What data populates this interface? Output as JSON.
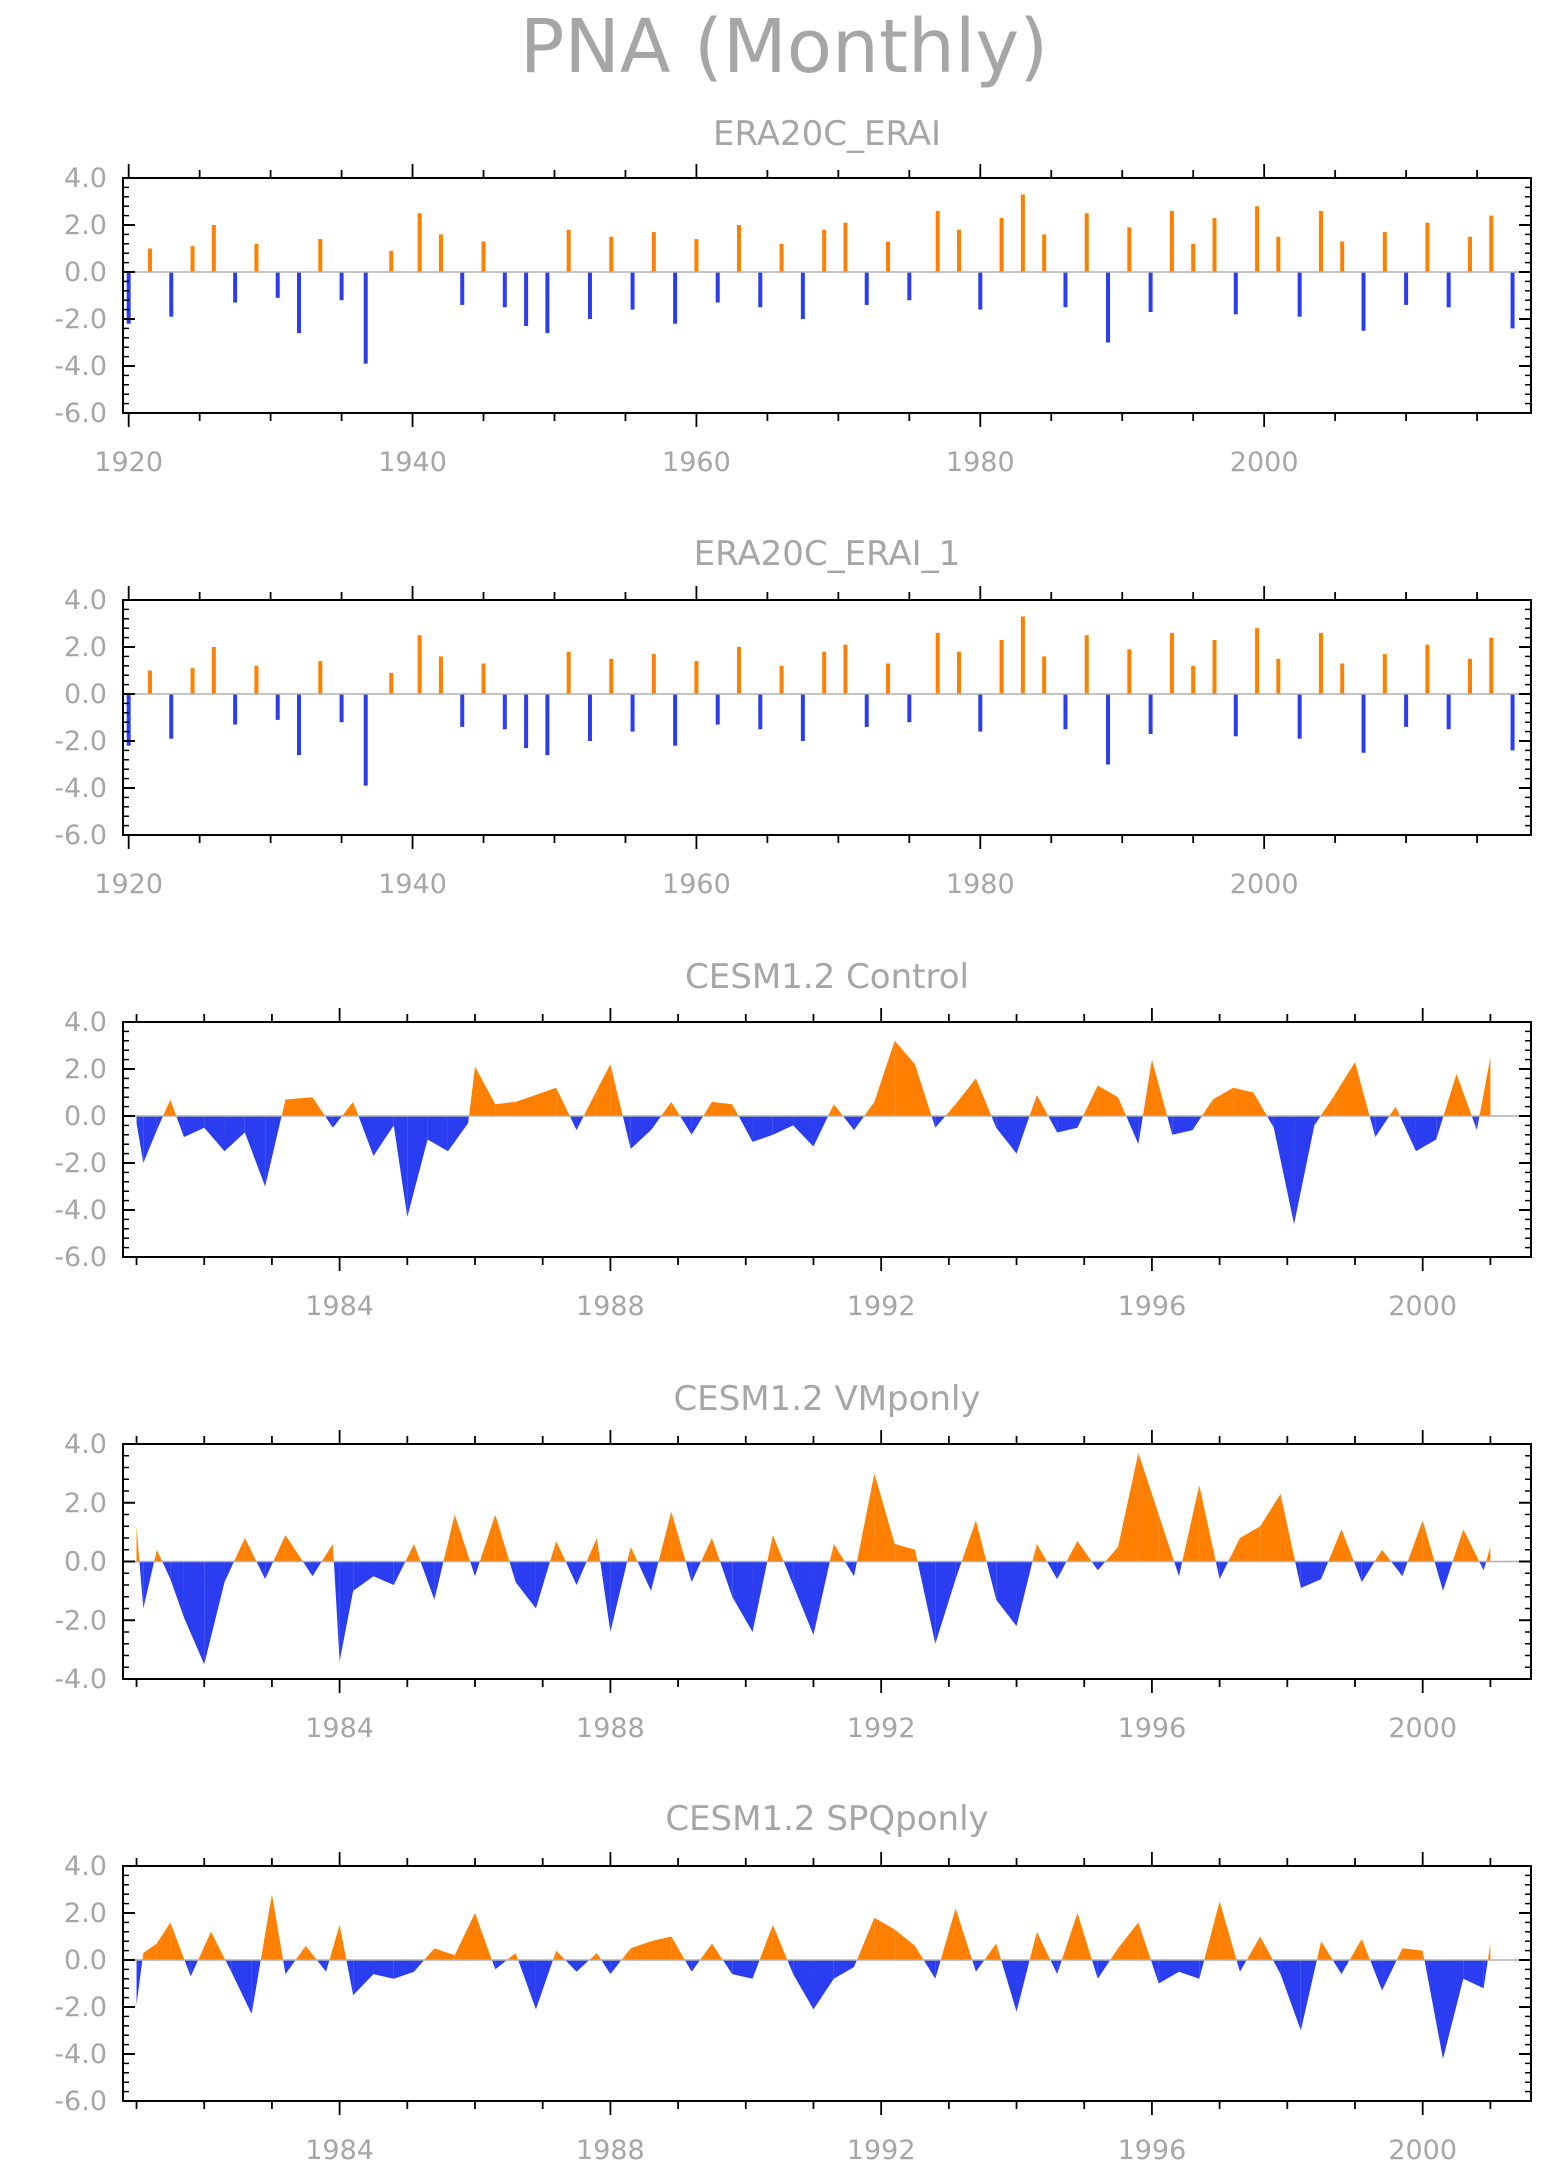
{
  "title": "PNA (Monthly)",
  "colors": {
    "positive": "#ff8000",
    "negative": "#2a3df0",
    "text": "#a6a6a6",
    "axis": "#000000"
  },
  "chart_data": [
    {
      "type": "area",
      "title": "ERA20C_ERAI",
      "xlabel": "",
      "ylabel": "",
      "xlim": [
        1919.6,
        2018.8
      ],
      "ylim": [
        -6.0,
        4.0
      ],
      "y_ticks": [
        "4.0",
        "2.0",
        "0.0",
        "-2.0",
        "-4.0",
        "-6.0"
      ],
      "x_ticks": [
        1920,
        1940,
        1960,
        1980,
        2000
      ],
      "x_tick_labels": [
        "1920",
        "1940",
        "1960",
        "1980",
        "2000"
      ],
      "style": "bars",
      "x": [
        1920.0,
        1921.5,
        1923.0,
        1924.5,
        1926.0,
        1927.5,
        1929.0,
        1930.5,
        1932.0,
        1933.5,
        1935.0,
        1936.7,
        1938.5,
        1940.5,
        1942.0,
        1943.5,
        1945.0,
        1946.5,
        1948.0,
        1949.5,
        1951.0,
        1952.5,
        1954.0,
        1955.5,
        1957.0,
        1958.5,
        1960.0,
        1961.5,
        1963.0,
        1964.5,
        1966.0,
        1967.5,
        1969.0,
        1970.5,
        1972.0,
        1973.5,
        1975.0,
        1977.0,
        1978.5,
        1980.0,
        1981.5,
        1983.0,
        1984.5,
        1986.0,
        1987.5,
        1989.0,
        1990.5,
        1992.0,
        1993.5,
        1995.0,
        1996.5,
        1998.0,
        1999.5,
        2001.0,
        2002.5,
        2004.0,
        2005.5,
        2007.0,
        2008.5,
        2010.0,
        2011.5,
        2013.0,
        2014.5,
        2016.0,
        2017.5
      ],
      "values": [
        -2.2,
        1.0,
        -1.9,
        1.1,
        2.0,
        -1.3,
        1.2,
        -1.1,
        -2.6,
        1.4,
        -1.2,
        -3.9,
        0.9,
        2.5,
        1.6,
        -1.4,
        1.3,
        -1.5,
        -2.3,
        -2.6,
        1.8,
        -2.0,
        1.5,
        -1.6,
        1.7,
        -2.2,
        1.4,
        -1.3,
        2.0,
        -1.5,
        1.2,
        -2.0,
        1.8,
        2.1,
        -1.4,
        1.3,
        -1.2,
        2.6,
        1.8,
        -1.6,
        2.3,
        3.3,
        1.6,
        -1.5,
        2.5,
        -3.0,
        1.9,
        -1.7,
        2.6,
        1.2,
        2.3,
        -1.8,
        2.8,
        1.5,
        -1.9,
        2.6,
        1.3,
        -2.5,
        1.7,
        -1.4,
        2.1,
        -1.5,
        1.5,
        2.4,
        -2.4
      ]
    },
    {
      "type": "area",
      "title": "ERA20C_ERAI_1",
      "xlabel": "",
      "ylabel": "",
      "xlim": [
        1919.6,
        2018.8
      ],
      "ylim": [
        -6.0,
        4.0
      ],
      "y_ticks": [
        "4.0",
        "2.0",
        "0.0",
        "-2.0",
        "-4.0",
        "-6.0"
      ],
      "x_ticks": [
        1920,
        1940,
        1960,
        1980,
        2000
      ],
      "x_tick_labels": [
        "1920",
        "1940",
        "1960",
        "1980",
        "2000"
      ],
      "style": "bars",
      "x": [
        1920.0,
        1921.5,
        1923.0,
        1924.5,
        1926.0,
        1927.5,
        1929.0,
        1930.5,
        1932.0,
        1933.5,
        1935.0,
        1936.7,
        1938.5,
        1940.5,
        1942.0,
        1943.5,
        1945.0,
        1946.5,
        1948.0,
        1949.5,
        1951.0,
        1952.5,
        1954.0,
        1955.5,
        1957.0,
        1958.5,
        1960.0,
        1961.5,
        1963.0,
        1964.5,
        1966.0,
        1967.5,
        1969.0,
        1970.5,
        1972.0,
        1973.5,
        1975.0,
        1977.0,
        1978.5,
        1980.0,
        1981.5,
        1983.0,
        1984.5,
        1986.0,
        1987.5,
        1989.0,
        1990.5,
        1992.0,
        1993.5,
        1995.0,
        1996.5,
        1998.0,
        1999.5,
        2001.0,
        2002.5,
        2004.0,
        2005.5,
        2007.0,
        2008.5,
        2010.0,
        2011.5,
        2013.0,
        2014.5,
        2016.0,
        2017.5
      ],
      "values": [
        -2.2,
        1.0,
        -1.9,
        1.1,
        2.0,
        -1.3,
        1.2,
        -1.1,
        -2.6,
        1.4,
        -1.2,
        -3.9,
        0.9,
        2.5,
        1.6,
        -1.4,
        1.3,
        -1.5,
        -2.3,
        -2.6,
        1.8,
        -2.0,
        1.5,
        -1.6,
        1.7,
        -2.2,
        1.4,
        -1.3,
        2.0,
        -1.5,
        1.2,
        -2.0,
        1.8,
        2.1,
        -1.4,
        1.3,
        -1.2,
        2.6,
        1.8,
        -1.6,
        2.3,
        3.3,
        1.6,
        -1.5,
        2.5,
        -3.0,
        1.9,
        -1.7,
        2.6,
        1.2,
        2.3,
        -1.8,
        2.8,
        1.5,
        -1.9,
        2.6,
        1.3,
        -2.5,
        1.7,
        -1.4,
        2.1,
        -1.5,
        1.5,
        2.4,
        -2.4
      ]
    },
    {
      "type": "area",
      "title": "CESM1.2 Control",
      "xlabel": "",
      "ylabel": "",
      "xlim": [
        1980.8,
        2001.6
      ],
      "ylim": [
        -6.0,
        4.0
      ],
      "y_ticks": [
        "4.0",
        "2.0",
        "0.0",
        "-2.0",
        "-4.0",
        "-6.0"
      ],
      "x_ticks": [
        1984,
        1988,
        1992,
        1996,
        2000
      ],
      "x_tick_labels": [
        "1984",
        "1988",
        "1992",
        "1996",
        "2000"
      ],
      "style": "area",
      "x": [
        1981.0,
        1981.1,
        1981.3,
        1981.5,
        1981.7,
        1982.0,
        1982.3,
        1982.6,
        1982.9,
        1983.2,
        1983.6,
        1983.9,
        1984.2,
        1984.5,
        1984.8,
        1985.0,
        1985.3,
        1985.6,
        1985.9,
        1986.0,
        1986.3,
        1986.6,
        1986.9,
        1987.2,
        1987.5,
        1987.8,
        1988.0,
        1988.3,
        1988.6,
        1988.9,
        1989.2,
        1989.5,
        1989.8,
        1990.1,
        1990.4,
        1990.7,
        1991.0,
        1991.3,
        1991.6,
        1991.9,
        1992.2,
        1992.5,
        1992.8,
        1993.1,
        1993.4,
        1993.7,
        1994.0,
        1994.3,
        1994.6,
        1994.9,
        1995.2,
        1995.5,
        1995.8,
        1996.0,
        1996.3,
        1996.6,
        1996.9,
        1997.2,
        1997.5,
        1997.8,
        1998.1,
        1998.4,
        1998.7,
        1999.0,
        1999.3,
        1999.6,
        1999.9,
        2000.2,
        2000.5,
        2000.8,
        2001.0
      ],
      "values": [
        -0.3,
        -2.0,
        -0.6,
        0.7,
        -0.9,
        -0.5,
        -1.5,
        -0.7,
        -3.0,
        0.7,
        0.8,
        -0.5,
        0.6,
        -1.7,
        -0.4,
        -4.3,
        -1.0,
        -1.5,
        -0.3,
        2.1,
        0.5,
        0.6,
        0.9,
        1.2,
        -0.6,
        1.1,
        2.2,
        -1.4,
        -0.6,
        0.6,
        -0.8,
        0.6,
        0.5,
        -1.1,
        -0.8,
        -0.4,
        -1.3,
        0.5,
        -0.6,
        0.6,
        3.2,
        2.2,
        -0.5,
        0.5,
        1.6,
        -0.5,
        -1.6,
        0.9,
        -0.7,
        -0.5,
        1.3,
        0.8,
        -1.2,
        2.4,
        -0.8,
        -0.6,
        0.7,
        1.2,
        1.0,
        -0.5,
        -4.6,
        -0.4,
        0.9,
        2.3,
        -0.9,
        0.4,
        -1.5,
        -1.0,
        1.8,
        -0.6,
        2.5
      ]
    },
    {
      "type": "area",
      "title": "CESM1.2 VMponly",
      "xlabel": "",
      "ylabel": "",
      "xlim": [
        1980.8,
        2001.6
      ],
      "ylim": [
        -4.0,
        4.0
      ],
      "y_ticks": [
        "4.0",
        "2.0",
        "0.0",
        "-2.0",
        "-4.0"
      ],
      "x_ticks": [
        1984,
        1988,
        1992,
        1996,
        2000
      ],
      "x_tick_labels": [
        "1984",
        "1988",
        "1992",
        "1996",
        "2000"
      ],
      "style": "area",
      "x": [
        1981.0,
        1981.1,
        1981.3,
        1981.5,
        1981.7,
        1982.0,
        1982.3,
        1982.6,
        1982.9,
        1983.2,
        1983.6,
        1983.9,
        1984.0,
        1984.2,
        1984.5,
        1984.8,
        1985.1,
        1985.4,
        1985.7,
        1986.0,
        1986.3,
        1986.6,
        1986.9,
        1987.2,
        1987.5,
        1987.8,
        1988.0,
        1988.3,
        1988.6,
        1988.9,
        1989.2,
        1989.5,
        1989.8,
        1990.1,
        1990.4,
        1990.7,
        1991.0,
        1991.3,
        1991.6,
        1991.9,
        1992.2,
        1992.5,
        1992.8,
        1993.1,
        1993.4,
        1993.7,
        1994.0,
        1994.3,
        1994.6,
        1994.9,
        1995.2,
        1995.5,
        1995.8,
        1996.1,
        1996.4,
        1996.7,
        1997.0,
        1997.3,
        1997.6,
        1997.9,
        1998.2,
        1998.5,
        1998.8,
        1999.1,
        1999.4,
        1999.7,
        2000.0,
        2000.3,
        2000.6,
        2000.9,
        2001.0
      ],
      "values": [
        1.2,
        -1.6,
        0.4,
        -0.6,
        -1.9,
        -3.5,
        -0.7,
        0.8,
        -0.6,
        0.9,
        -0.5,
        0.6,
        -3.4,
        -1.0,
        -0.5,
        -0.8,
        0.6,
        -1.3,
        1.6,
        -0.5,
        1.6,
        -0.7,
        -1.6,
        0.7,
        -0.8,
        0.8,
        -2.4,
        0.5,
        -1.0,
        1.7,
        -0.7,
        0.8,
        -1.2,
        -2.4,
        0.9,
        -0.8,
        -2.5,
        0.6,
        -0.5,
        3.0,
        0.6,
        0.4,
        -2.8,
        -0.6,
        1.4,
        -1.3,
        -2.2,
        0.6,
        -0.6,
        0.7,
        -0.3,
        0.5,
        3.7,
        1.6,
        -0.5,
        2.6,
        -0.6,
        0.8,
        1.2,
        2.3,
        -0.9,
        -0.6,
        1.1,
        -0.7,
        0.4,
        -0.5,
        1.4,
        -1.0,
        1.1,
        -0.3,
        0.5
      ]
    },
    {
      "type": "area",
      "title": "CESM1.2 SPQponly",
      "xlabel": "",
      "ylabel": "",
      "xlim": [
        1980.8,
        2001.6
      ],
      "ylim": [
        -6.0,
        4.0
      ],
      "y_ticks": [
        "4.0",
        "2.0",
        "0.0",
        "-2.0",
        "-4.0",
        "-6.0"
      ],
      "x_ticks": [
        1984,
        1988,
        1992,
        1996,
        2000
      ],
      "x_tick_labels": [
        "1984",
        "1988",
        "1992",
        "1996",
        "2000"
      ],
      "style": "area",
      "x": [
        1981.0,
        1981.1,
        1981.3,
        1981.5,
        1981.8,
        1982.1,
        1982.4,
        1982.7,
        1983.0,
        1983.2,
        1983.5,
        1983.8,
        1984.0,
        1984.2,
        1984.5,
        1984.8,
        1985.1,
        1985.4,
        1985.7,
        1986.0,
        1986.3,
        1986.6,
        1986.9,
        1987.2,
        1987.5,
        1987.8,
        1988.0,
        1988.3,
        1988.6,
        1988.9,
        1989.2,
        1989.5,
        1989.8,
        1990.1,
        1990.4,
        1990.7,
        1991.0,
        1991.3,
        1991.6,
        1991.9,
        1992.2,
        1992.5,
        1992.8,
        1993.1,
        1993.4,
        1993.7,
        1994.0,
        1994.3,
        1994.6,
        1994.9,
        1995.2,
        1995.5,
        1995.8,
        1996.1,
        1996.4,
        1996.7,
        1997.0,
        1997.3,
        1997.6,
        1997.9,
        1998.2,
        1998.5,
        1998.8,
        1999.1,
        1999.4,
        1999.7,
        2000.0,
        2000.3,
        2000.6,
        2000.9,
        2001.0
      ],
      "values": [
        -1.9,
        0.3,
        0.7,
        1.6,
        -0.7,
        1.2,
        -0.5,
        -2.3,
        2.8,
        -0.6,
        0.6,
        -0.5,
        1.5,
        -1.5,
        -0.6,
        -0.8,
        -0.5,
        0.5,
        0.2,
        2.0,
        -0.4,
        0.3,
        -2.1,
        0.4,
        -0.5,
        0.3,
        -0.6,
        0.5,
        0.8,
        1.0,
        -0.5,
        0.7,
        -0.6,
        -0.8,
        1.5,
        -0.6,
        -2.1,
        -0.8,
        -0.3,
        1.8,
        1.3,
        0.6,
        -0.8,
        2.2,
        -0.5,
        0.7,
        -2.2,
        1.2,
        -0.6,
        2.0,
        -0.8,
        0.5,
        1.6,
        -1.0,
        -0.5,
        -0.8,
        2.5,
        -0.5,
        1.0,
        -0.6,
        -3.0,
        0.8,
        -0.6,
        0.9,
        -1.3,
        0.5,
        0.4,
        -4.2,
        -0.8,
        -1.2,
        0.7
      ]
    }
  ]
}
